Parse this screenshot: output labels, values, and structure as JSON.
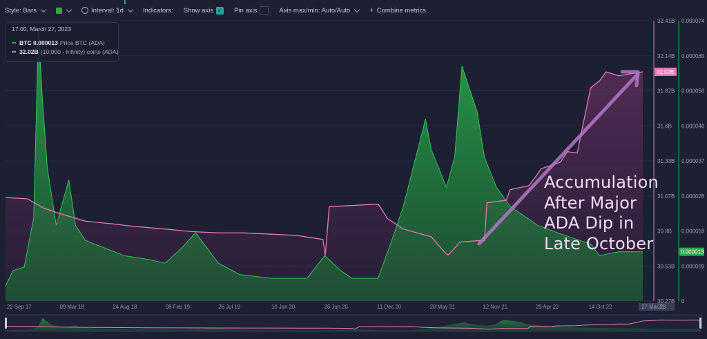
{
  "toolbar": {
    "style_label": "Style: Bars",
    "interval_label": "Interval: 1d",
    "indicators_label": "Indicators:",
    "show_axis_label": "Show axis",
    "pin_axis_label": "Pin axis",
    "axis_label": "Axis max/min: Auto/Auto",
    "combine_label": "Combine metrics",
    "swatch_color": "#2fa84a"
  },
  "tooltip": {
    "date": "17:00, March 27, 2023",
    "price_value": "BTC 0.000013",
    "price_name": "Price BTC (ADA)",
    "holdings_value": "32.02B",
    "holdings_name": "(10,000 - Infinity) coins (ADA)"
  },
  "annotation": {
    "lines": [
      "Accumulation",
      "After Major",
      "ADA Dip in",
      "Late October"
    ]
  },
  "chart_data": {
    "type": "area",
    "title": "",
    "x_labels": [
      "22 Sep 17",
      "09 Mar 18",
      "24 Aug 18",
      "08 Feb 19",
      "26 Jul 19",
      "10 Jan 20",
      "26 Jun 20",
      "11 Dec 20",
      "28 May 21",
      "12 Nov 21",
      "29 Apr 22",
      "14 Oct 22",
      "27 Mar 23",
      "23"
    ],
    "left_axis": {
      "ticks": [
        "32.41B",
        "32.14B",
        "31.87B",
        "31.6B",
        "31.33B",
        "31.07B",
        "30.8B",
        "30.53B",
        "30.27B"
      ],
      "range": [
        30.27,
        32.41
      ],
      "unit": "B",
      "current_label": "32.02B",
      "color": "#e879b8"
    },
    "right_axis": {
      "ticks": [
        "0.000074",
        "0.000065",
        "0.000056",
        "0.000046",
        "0.000037",
        "0.000028",
        "0.000018",
        "0.000009",
        "0"
      ],
      "range": [
        0,
        7.4e-05
      ],
      "current_label": "0.000013",
      "color": "#2fa84a"
    },
    "series": [
      {
        "name": "(10,000 - Infinity) coins (ADA)",
        "axis": "left",
        "color": "#e879b8",
        "x": [
          "2017-09-22",
          "2017-12-01",
          "2018-01-20",
          "2018-03-09",
          "2018-06-01",
          "2018-08-24",
          "2018-11-01",
          "2019-02-08",
          "2019-05-01",
          "2019-07-26",
          "2019-10-15",
          "2020-01-10",
          "2020-04-01",
          "2020-06-20",
          "2020-06-28",
          "2020-07-10",
          "2020-12-11",
          "2020-12-20",
          "2021-01-10",
          "2021-03-01",
          "2021-05-28",
          "2021-07-10",
          "2021-07-20",
          "2021-08-20",
          "2021-08-25",
          "2021-10-20",
          "2021-11-12",
          "2021-11-20",
          "2022-01-20",
          "2022-02-01",
          "2022-04-01",
          "2022-04-29",
          "2022-05-10",
          "2022-07-10",
          "2022-08-01",
          "2022-09-01",
          "2022-10-05",
          "2022-10-14",
          "2022-11-10",
          "2022-12-01",
          "2023-01-10",
          "2023-03-27"
        ],
        "values": [
          31.06,
          31.05,
          30.98,
          30.94,
          30.88,
          30.86,
          30.84,
          30.82,
          30.8,
          30.79,
          30.79,
          30.78,
          30.77,
          30.74,
          30.62,
          30.99,
          31.01,
          30.98,
          30.9,
          30.82,
          30.76,
          30.64,
          30.62,
          30.7,
          30.72,
          30.73,
          30.73,
          31.02,
          31.04,
          31.12,
          31.15,
          31.24,
          31.28,
          31.33,
          31.41,
          31.4,
          31.8,
          31.9,
          31.95,
          32.02,
          31.99,
          32.02
        ]
      },
      {
        "name": "Price BTC (ADA)",
        "axis": "right",
        "color": "#2fa84a",
        "x": [
          "2017-09-22",
          "2017-10-15",
          "2017-11-20",
          "2017-12-20",
          "2018-01-04",
          "2018-01-15",
          "2018-02-01",
          "2018-03-01",
          "2018-04-10",
          "2018-05-01",
          "2018-06-01",
          "2018-08-01",
          "2018-10-01",
          "2018-12-15",
          "2019-02-08",
          "2019-04-01",
          "2019-05-15",
          "2019-07-26",
          "2019-10-01",
          "2020-01-10",
          "2020-03-15",
          "2020-05-01",
          "2020-06-26",
          "2020-08-15",
          "2020-09-20",
          "2020-11-15",
          "2020-12-11",
          "2021-01-15",
          "2021-02-01",
          "2021-03-01",
          "2021-05-10",
          "2021-05-28",
          "2021-07-15",
          "2021-08-10",
          "2021-09-02",
          "2021-10-20",
          "2021-11-12",
          "2021-12-20",
          "2022-02-01",
          "2022-04-29",
          "2022-07-01",
          "2022-10-14",
          "2022-11-10",
          "2023-01-10",
          "2023-03-27"
        ],
        "values": [
          4e-06,
          8e-06,
          9e-06,
          2.2e-05,
          7.2e-05,
          5.5e-05,
          3.5e-05,
          2e-05,
          3.2e-05,
          2e-05,
          1.6e-05,
          1.4e-05,
          1.2e-05,
          1.1e-05,
          1e-05,
          1.4e-05,
          1.8e-05,
          1e-05,
          7e-06,
          6e-06,
          6e-06,
          6e-06,
          1.2e-05,
          8e-06,
          6e-06,
          6e-06,
          6e-06,
          1.4e-05,
          1.8e-05,
          2.5e-05,
          4.8e-05,
          4e-05,
          3e-05,
          3.8e-05,
          6.2e-05,
          5e-05,
          3.8e-05,
          3e-05,
          2.5e-05,
          2e-05,
          1.8e-05,
          1.5e-05,
          1.2e-05,
          1.3e-05,
          1.3e-05
        ]
      }
    ],
    "grid": true,
    "legend": "top-left"
  }
}
